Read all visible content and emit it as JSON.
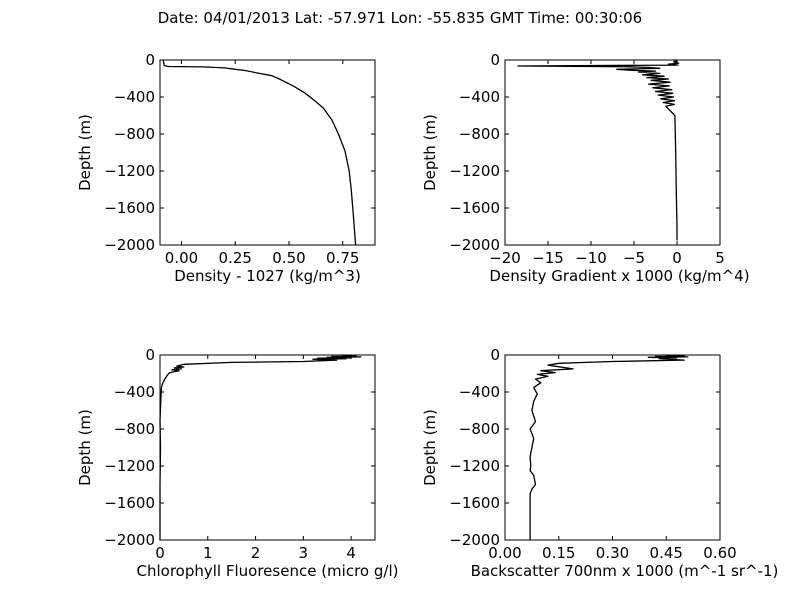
{
  "figure": {
    "title": "Date: 04/01/2013  Lat:  -57.971 Lon:  -55.835  GMT Time: 00:30:06"
  },
  "chart_data": [
    {
      "type": "line",
      "xlabel": "Density - 1027 (kg/m^3)",
      "ylabel": "Depth (m)",
      "xlim": [
        -0.1,
        0.9
      ],
      "ylim": [
        -2000,
        0
      ],
      "xticks": [
        0.0,
        0.25,
        0.5,
        0.75
      ],
      "xtick_labels": [
        "0.00",
        "0.25",
        "0.50",
        "0.75"
      ],
      "yticks": [
        0,
        -400,
        -800,
        -1200,
        -1600,
        -2000
      ],
      "ytick_labels": [
        "0",
        "−400",
        "−800",
        "−1200",
        "−1600",
        "−2000"
      ],
      "grid": false,
      "series": [
        {
          "x": [
            -0.085,
            -0.08,
            -0.06,
            0.1,
            0.2,
            0.25,
            0.3,
            0.35,
            0.42,
            0.45,
            0.52,
            0.57,
            0.62,
            0.66,
            0.7,
            0.73,
            0.76,
            0.78,
            0.79,
            0.8,
            0.81
          ],
          "y": [
            -5,
            -60,
            -70,
            -75,
            -85,
            -100,
            -115,
            -140,
            -170,
            -200,
            -280,
            -350,
            -440,
            -520,
            -650,
            -800,
            -980,
            -1200,
            -1420,
            -1700,
            -2000
          ]
        }
      ]
    },
    {
      "type": "line",
      "xlabel": "Density Gradient x 1000 (kg/m^4)",
      "ylabel": "Depth (m)",
      "xlim": [
        -20,
        5
      ],
      "ylim": [
        -2000,
        0
      ],
      "xticks": [
        -20,
        -15,
        -10,
        -5,
        0,
        5
      ],
      "xtick_labels": [
        "−20",
        "−15",
        "−10",
        "−5",
        "0",
        "5"
      ],
      "yticks": [
        0,
        -400,
        -800,
        -1200,
        -1600,
        -2000
      ],
      "ytick_labels": [
        "0",
        "−400",
        "−800",
        "−1200",
        "−1600",
        "−2000"
      ],
      "grid": false,
      "series": [
        {
          "x": [
            -0.3,
            0,
            -0.4,
            0.2,
            -1,
            0.1,
            -18.5,
            -6,
            -3.5,
            -2,
            -7,
            -5.5,
            -2.5,
            -4.5,
            -2,
            -4,
            -1.5,
            -3.5,
            -1,
            -3,
            -0.8,
            -3.3,
            -0.9,
            -2.8,
            -0.6,
            -2.5,
            -0.5,
            -2.2,
            -0.4,
            -1.9,
            -0.3,
            -1.6,
            -0.3,
            -1.3,
            -0.25,
            -0.2,
            -0.15,
            -0.1,
            -0.05,
            0,
            0
          ],
          "y": [
            0,
            -10,
            -20,
            -35,
            -45,
            -55,
            -65,
            -72,
            -80,
            -90,
            -100,
            -110,
            -120,
            -130,
            -145,
            -160,
            -175,
            -190,
            -205,
            -220,
            -240,
            -260,
            -280,
            -300,
            -320,
            -340,
            -360,
            -380,
            -400,
            -420,
            -440,
            -460,
            -480,
            -500,
            -600,
            -800,
            -1000,
            -1300,
            -1600,
            -1800,
            -1950
          ]
        }
      ]
    },
    {
      "type": "line",
      "xlabel": "Chlorophyll Fluoresence (micro g/l)",
      "ylabel": "Depth (m)",
      "xlim": [
        0,
        4.5
      ],
      "ylim": [
        -2000,
        0
      ],
      "xticks": [
        0,
        1,
        2,
        3,
        4
      ],
      "xtick_labels": [
        "0",
        "1",
        "2",
        "3",
        "4"
      ],
      "yticks": [
        0,
        -400,
        -800,
        -1200,
        -1600,
        -2000
      ],
      "ytick_labels": [
        "0",
        "−400",
        "−800",
        "−1200",
        "−1600",
        "−2000"
      ],
      "grid": false,
      "series": [
        {
          "x": [
            3.8,
            4.1,
            3.6,
            4.2,
            3.5,
            4.0,
            3.3,
            3.9,
            3.2,
            3.7,
            3.4,
            3.0,
            1.5,
            0.5,
            0.35,
            0.5,
            0.3,
            0.45,
            0.25,
            0.4,
            0.2,
            0.15,
            0.1,
            0.06,
            0.03,
            0.02,
            0.0,
            0.01,
            0.0,
            0.0
          ],
          "y": [
            -5,
            -10,
            -15,
            -20,
            -25,
            -30,
            -35,
            -40,
            -45,
            -55,
            -62,
            -70,
            -80,
            -100,
            -120,
            -130,
            -140,
            -150,
            -160,
            -170,
            -190,
            -220,
            -260,
            -300,
            -350,
            -450,
            -700,
            -1000,
            -1400,
            -2000
          ]
        }
      ]
    },
    {
      "type": "line",
      "xlabel": "Backscatter 700nm x 1000 (m^-1 sr^-1)",
      "ylabel": "Depth (m)",
      "xlim": [
        0,
        0.6
      ],
      "ylim": [
        -2000,
        0
      ],
      "xticks": [
        0.0,
        0.15,
        0.3,
        0.45,
        0.6
      ],
      "xtick_labels": [
        "0.00",
        "0.15",
        "0.30",
        "0.45",
        "0.60"
      ],
      "yticks": [
        0,
        -400,
        -800,
        -1200,
        -1600,
        -2000
      ],
      "ytick_labels": [
        "0",
        "−400",
        "−800",
        "−1200",
        "−1600",
        "−2000"
      ],
      "grid": false,
      "series": [
        {
          "x": [
            0.45,
            0.5,
            0.42,
            0.51,
            0.4,
            0.48,
            0.43,
            0.5,
            0.3,
            0.15,
            0.12,
            0.19,
            0.1,
            0.14,
            0.09,
            0.12,
            0.085,
            0.1,
            0.08,
            0.09,
            0.08,
            0.075,
            0.085,
            0.07,
            0.08,
            0.075,
            0.07,
            0.072,
            0.07,
            0.08,
            0.085,
            0.075,
            0.07,
            0.07,
            0.07
          ],
          "y": [
            -5,
            -10,
            -15,
            -20,
            -25,
            -30,
            -40,
            -55,
            -70,
            -90,
            -110,
            -150,
            -170,
            -190,
            -210,
            -230,
            -260,
            -300,
            -350,
            -420,
            -500,
            -600,
            -720,
            -800,
            -900,
            -1000,
            -1100,
            -1200,
            -1250,
            -1300,
            -1400,
            -1450,
            -1500,
            -1700,
            -2000
          ]
        }
      ]
    }
  ]
}
